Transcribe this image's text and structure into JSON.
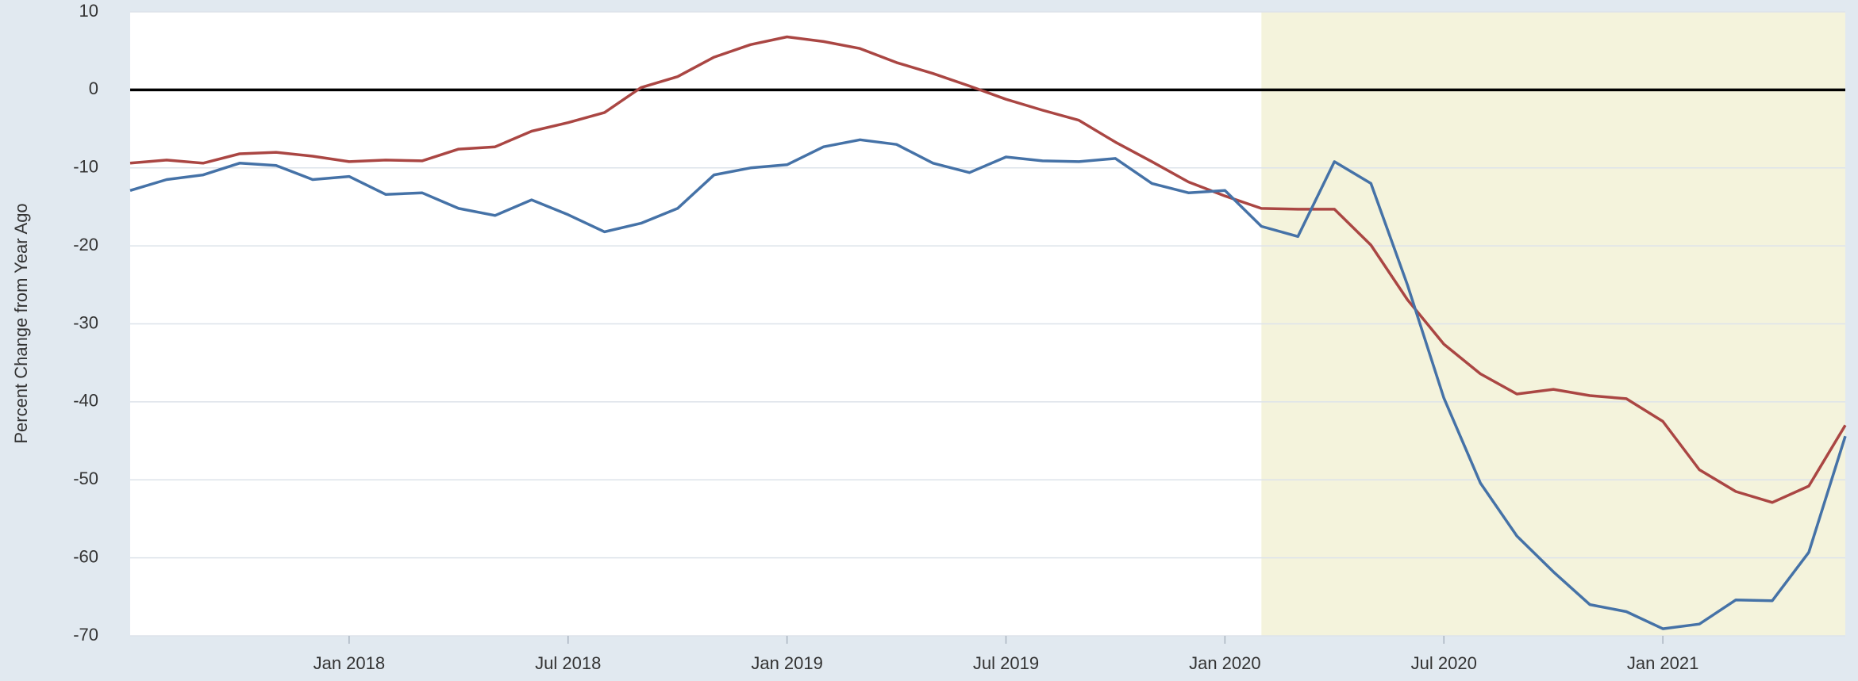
{
  "chart_data": {
    "type": "line",
    "y_label": "Percent Change from Year Ago",
    "x": [
      "2017-07",
      "2017-08",
      "2017-09",
      "2017-10",
      "2017-11",
      "2017-12",
      "2018-01",
      "2018-02",
      "2018-03",
      "2018-04",
      "2018-05",
      "2018-06",
      "2018-07",
      "2018-08",
      "2018-09",
      "2018-10",
      "2018-11",
      "2018-12",
      "2019-01",
      "2019-02",
      "2019-03",
      "2019-04",
      "2019-05",
      "2019-06",
      "2019-07",
      "2019-08",
      "2019-09",
      "2019-10",
      "2019-11",
      "2019-12",
      "2020-01",
      "2020-02",
      "2020-03",
      "2020-04",
      "2020-05",
      "2020-06",
      "2020-07",
      "2020-08",
      "2020-09",
      "2020-10",
      "2020-11",
      "2020-12",
      "2021-01",
      "2021-02",
      "2021-03",
      "2021-04",
      "2021-05",
      "2021-06"
    ],
    "series": [
      {
        "color": "#aa4643",
        "values": [
          -9.4,
          -9.0,
          -9.4,
          -8.2,
          -8.0,
          -8.5,
          -9.2,
          -9.0,
          -9.1,
          -7.6,
          -7.3,
          -5.3,
          -4.2,
          -2.9,
          0.3,
          1.7,
          4.2,
          5.8,
          6.8,
          6.2,
          5.3,
          3.5,
          2.1,
          0.5,
          -1.2,
          -2.6,
          -3.9,
          -6.7,
          -9.2,
          -11.8,
          -13.6,
          -15.2,
          -15.3,
          -15.3,
          -19.9,
          -26.9,
          -32.6,
          -36.4,
          -39.0,
          -38.4,
          -39.2,
          -39.6,
          -42.5,
          -48.7,
          -51.5,
          -52.9,
          -50.8,
          -43.0
        ]
      },
      {
        "color": "#4572a7",
        "values": [
          -12.9,
          -11.5,
          -10.9,
          -9.4,
          -9.7,
          -11.5,
          -11.1,
          -13.4,
          -13.2,
          -15.2,
          -16.1,
          -14.1,
          -16.0,
          -18.2,
          -17.1,
          -15.2,
          -10.9,
          -10.0,
          -9.6,
          -7.3,
          -6.4,
          -7.0,
          -9.4,
          -10.6,
          -8.6,
          -9.1,
          -9.2,
          -8.8,
          -12.0,
          -13.2,
          -12.9,
          -17.5,
          -18.8,
          -9.2,
          -12.0,
          -25.0,
          -39.5,
          -50.4,
          -57.2,
          -61.8,
          -66.0,
          -66.9,
          -69.1,
          -68.5,
          -65.4,
          -65.5,
          -59.3,
          -44.4
        ]
      }
    ],
    "xlim": [
      "2017-07",
      "2021-06"
    ],
    "xticks": [
      {
        "value": "2018-01",
        "label": "Jan 2018"
      },
      {
        "value": "2018-07",
        "label": "Jul 2018"
      },
      {
        "value": "2019-01",
        "label": "Jan 2019"
      },
      {
        "value": "2019-07",
        "label": "Jul 2019"
      },
      {
        "value": "2020-01",
        "label": "Jan 2020"
      },
      {
        "value": "2020-07",
        "label": "Jul 2020"
      },
      {
        "value": "2021-01",
        "label": "Jan 2021"
      }
    ],
    "ylim": [
      -70,
      10
    ],
    "yticks": [
      -70,
      -60,
      -50,
      -40,
      -30,
      -20,
      -10,
      0,
      10
    ],
    "grid": true,
    "shading": [
      {
        "start": "2020-02",
        "end": "2021-06",
        "color": "#f4f3dc"
      }
    ]
  }
}
